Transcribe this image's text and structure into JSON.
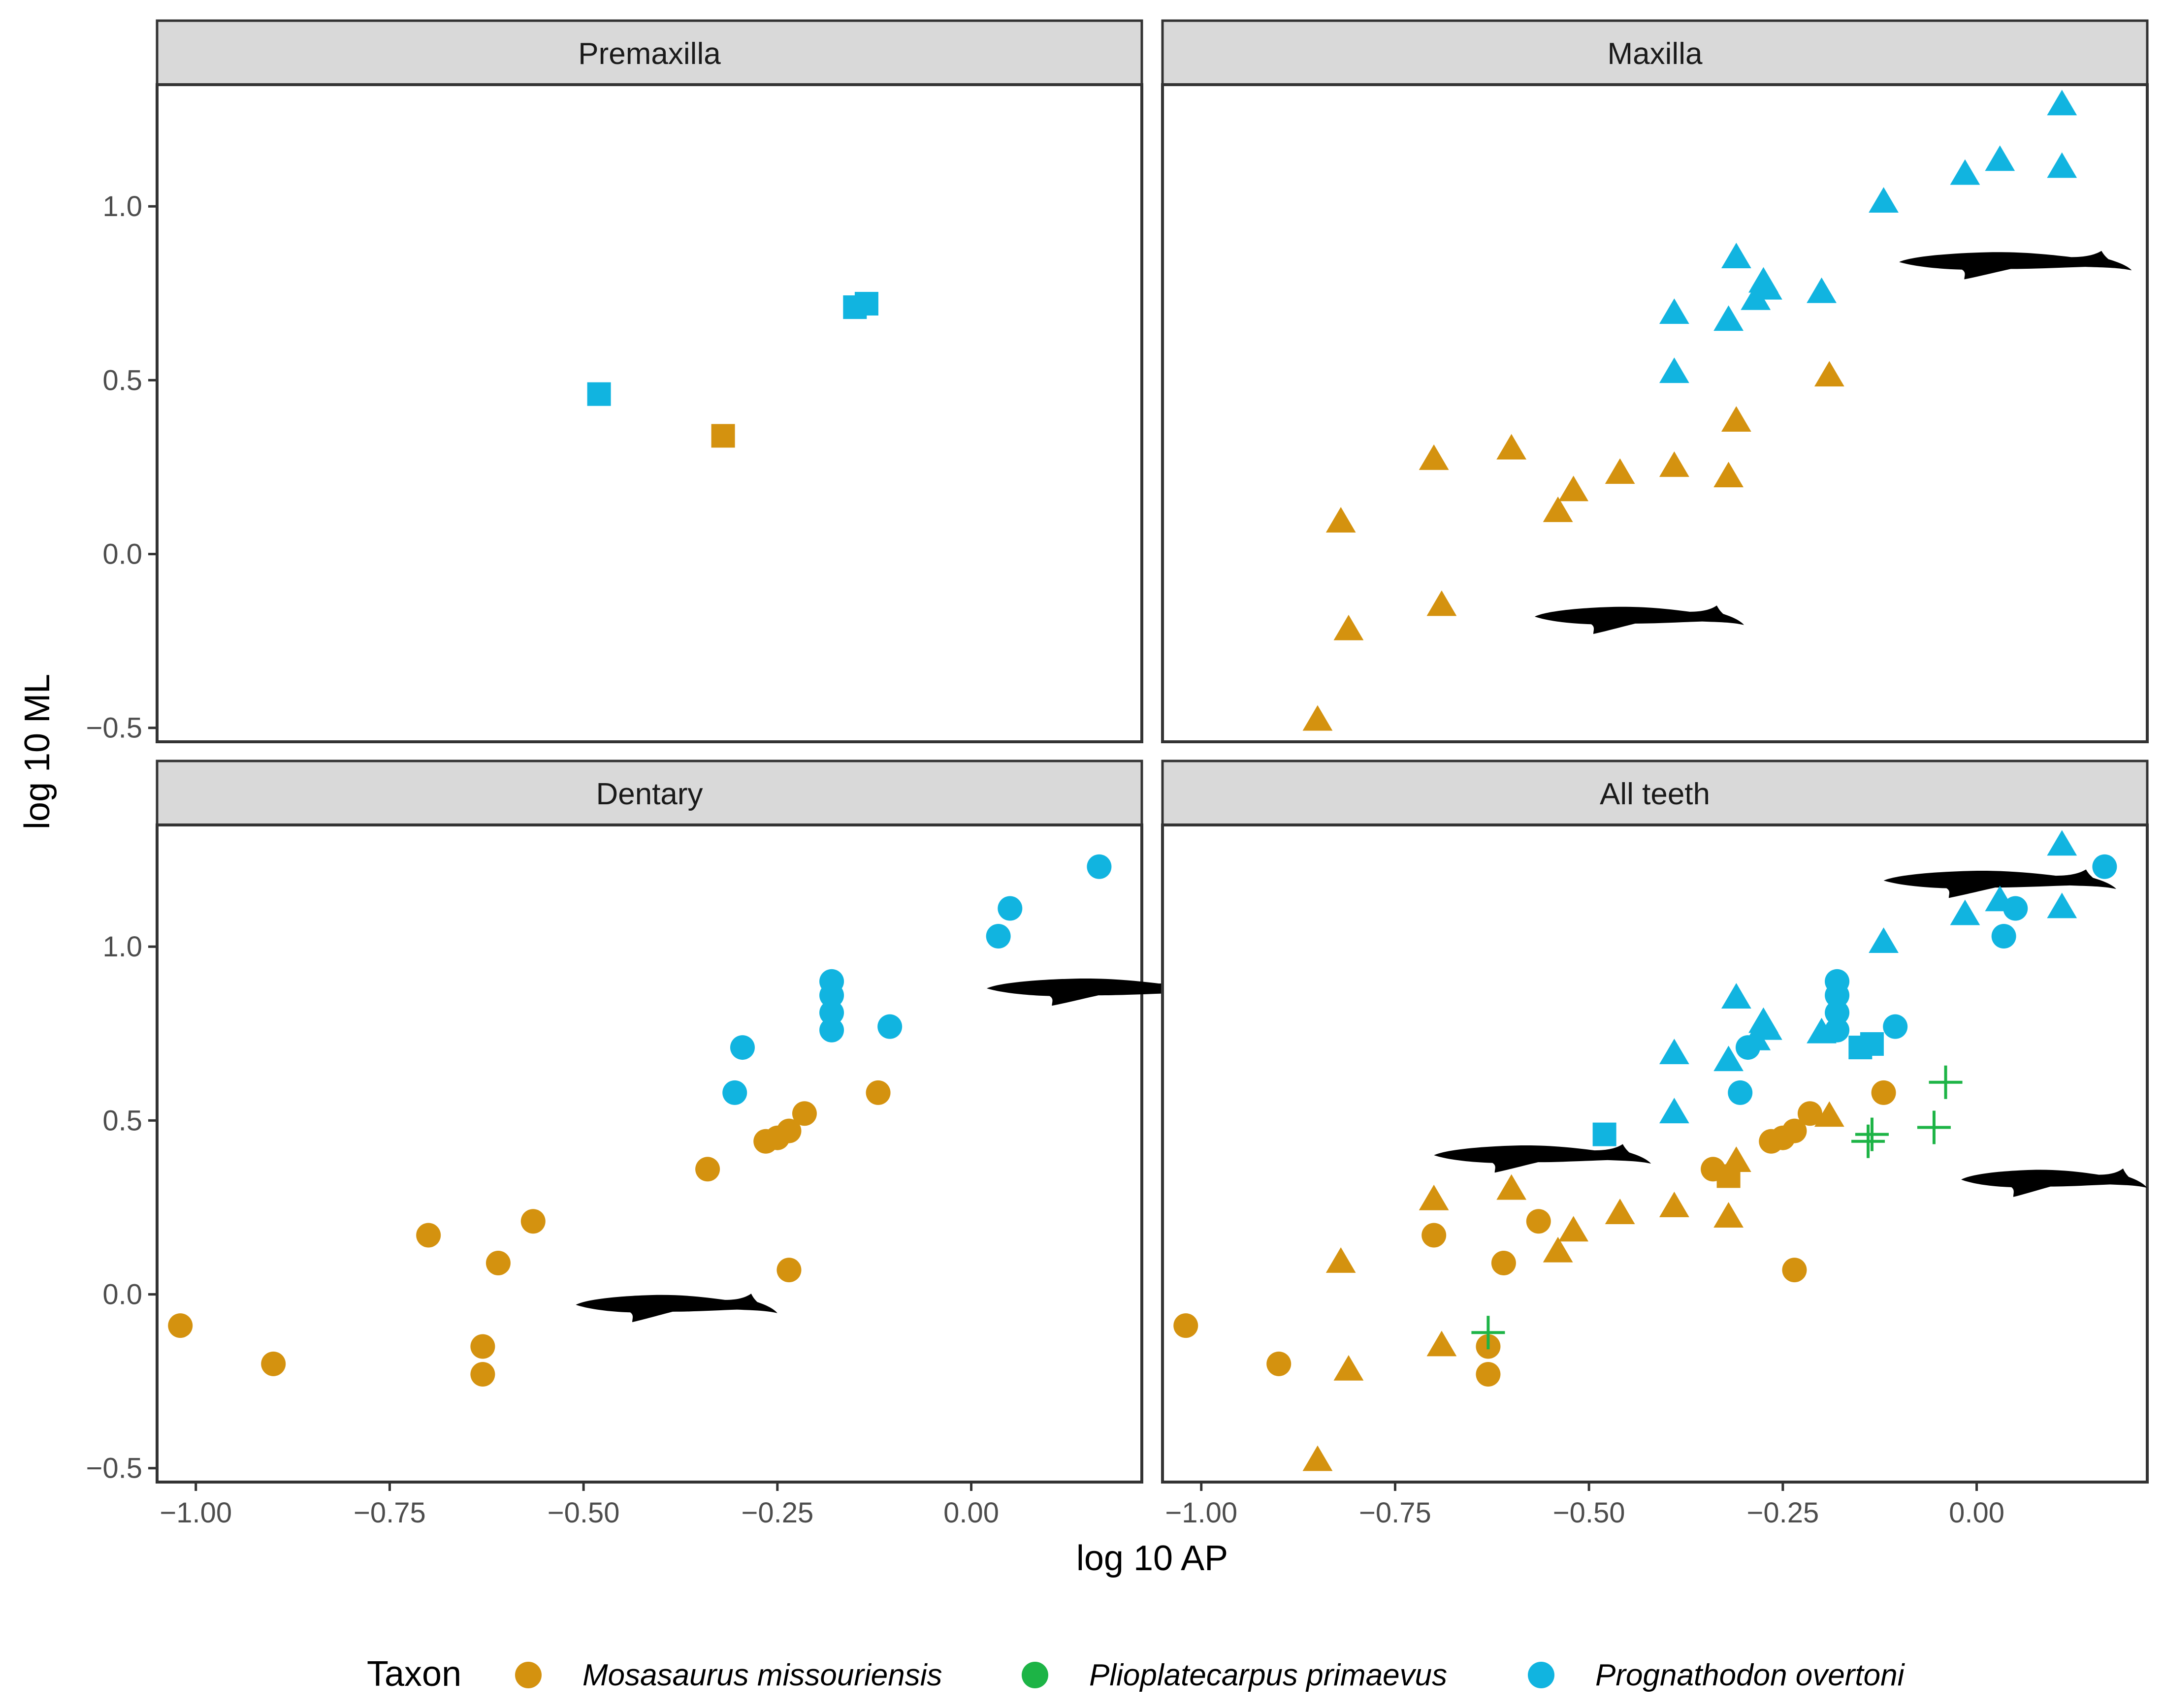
{
  "chart_data": {
    "type": "scatter",
    "xlabel": "log 10 AP",
    "ylabel": "log 10 ML",
    "xlim": [
      -1.05,
      0.22
    ],
    "ylim": [
      -0.54,
      1.35
    ],
    "xticks": [
      -1.0,
      -0.75,
      -0.5,
      -0.25,
      0.0
    ],
    "xtick_labels": [
      "−1.00",
      "−0.75",
      "−0.50",
      "−0.25",
      "0.00"
    ],
    "yticks": [
      -0.5,
      0.0,
      0.5,
      1.0
    ],
    "ytick_labels": [
      "−0.5",
      "0.0",
      "0.5",
      "1.0"
    ],
    "legend": {
      "title": "Taxon",
      "position": "bottom",
      "entries": [
        {
          "label": "Mosasaurus missouriensis",
          "color": "#D4920F"
        },
        {
          "label": "Plioplatecarpus primaevus",
          "color": "#1DB446"
        },
        {
          "label": "Prognathodon overtoni",
          "color": "#11B4E0"
        }
      ]
    },
    "taxa": {
      "mosasaurus": {
        "name": "Mosasaurus missouriensis",
        "color": "#D4920F"
      },
      "plioplatecarpus": {
        "name": "Plioplatecarpus primaevus",
        "color": "#1DB446"
      },
      "prognathodon": {
        "name": "Prognathodon overtoni",
        "color": "#11B4E0"
      }
    },
    "shapes": {
      "premaxilla": "square",
      "maxilla": "triangle",
      "dentary": "circle",
      "unknown": "cross"
    },
    "panels": [
      {
        "title": "Premaxilla",
        "points": [
          {
            "x": -0.48,
            "y": 0.46,
            "taxon": "prognathodon",
            "shape": "premaxilla"
          },
          {
            "x": -0.15,
            "y": 0.71,
            "taxon": "prognathodon",
            "shape": "premaxilla"
          },
          {
            "x": -0.135,
            "y": 0.72,
            "taxon": "prognathodon",
            "shape": "premaxilla"
          },
          {
            "x": -0.32,
            "y": 0.34,
            "taxon": "mosasaurus",
            "shape": "premaxilla"
          }
        ],
        "silhouettes": []
      },
      {
        "title": "Maxilla",
        "points": [
          {
            "x": -0.85,
            "y": -0.48,
            "taxon": "mosasaurus",
            "shape": "maxilla"
          },
          {
            "x": -0.82,
            "y": 0.09,
            "taxon": "mosasaurus",
            "shape": "maxilla"
          },
          {
            "x": -0.81,
            "y": -0.22,
            "taxon": "mosasaurus",
            "shape": "maxilla"
          },
          {
            "x": -0.7,
            "y": 0.27,
            "taxon": "mosasaurus",
            "shape": "maxilla"
          },
          {
            "x": -0.69,
            "y": -0.15,
            "taxon": "mosasaurus",
            "shape": "maxilla"
          },
          {
            "x": -0.6,
            "y": 0.3,
            "taxon": "mosasaurus",
            "shape": "maxilla"
          },
          {
            "x": -0.54,
            "y": 0.12,
            "taxon": "mosasaurus",
            "shape": "maxilla"
          },
          {
            "x": -0.52,
            "y": 0.18,
            "taxon": "mosasaurus",
            "shape": "maxilla"
          },
          {
            "x": -0.46,
            "y": 0.23,
            "taxon": "mosasaurus",
            "shape": "maxilla"
          },
          {
            "x": -0.39,
            "y": 0.25,
            "taxon": "mosasaurus",
            "shape": "maxilla"
          },
          {
            "x": -0.32,
            "y": 0.22,
            "taxon": "mosasaurus",
            "shape": "maxilla"
          },
          {
            "x": -0.31,
            "y": 0.38,
            "taxon": "mosasaurus",
            "shape": "maxilla"
          },
          {
            "x": -0.19,
            "y": 0.51,
            "taxon": "mosasaurus",
            "shape": "maxilla"
          },
          {
            "x": -0.39,
            "y": 0.52,
            "taxon": "prognathodon",
            "shape": "maxilla"
          },
          {
            "x": -0.39,
            "y": 0.69,
            "taxon": "prognathodon",
            "shape": "maxilla"
          },
          {
            "x": -0.32,
            "y": 0.67,
            "taxon": "prognathodon",
            "shape": "maxilla"
          },
          {
            "x": -0.31,
            "y": 0.85,
            "taxon": "prognathodon",
            "shape": "maxilla"
          },
          {
            "x": -0.285,
            "y": 0.73,
            "taxon": "prognathodon",
            "shape": "maxilla"
          },
          {
            "x": -0.275,
            "y": 0.78,
            "taxon": "prognathodon",
            "shape": "maxilla"
          },
          {
            "x": -0.27,
            "y": 0.76,
            "taxon": "prognathodon",
            "shape": "maxilla"
          },
          {
            "x": -0.2,
            "y": 0.75,
            "taxon": "prognathodon",
            "shape": "maxilla"
          },
          {
            "x": -0.12,
            "y": 1.01,
            "taxon": "prognathodon",
            "shape": "maxilla"
          },
          {
            "x": -0.015,
            "y": 1.09,
            "taxon": "prognathodon",
            "shape": "maxilla"
          },
          {
            "x": 0.03,
            "y": 1.13,
            "taxon": "prognathodon",
            "shape": "maxilla"
          },
          {
            "x": 0.11,
            "y": 1.11,
            "taxon": "prognathodon",
            "shape": "maxilla"
          },
          {
            "x": 0.11,
            "y": 1.29,
            "taxon": "prognathodon",
            "shape": "maxilla"
          }
        ],
        "silhouettes": [
          {
            "x": -0.57,
            "y": -0.18,
            "w": 0.27,
            "h": 0.1
          },
          {
            "x": -0.1,
            "y": 0.84,
            "w": 0.3,
            "h": 0.1
          }
        ]
      },
      {
        "title": "Dentary",
        "points": [
          {
            "x": -1.02,
            "y": -0.09,
            "taxon": "mosasaurus",
            "shape": "dentary"
          },
          {
            "x": -0.9,
            "y": -0.2,
            "taxon": "mosasaurus",
            "shape": "dentary"
          },
          {
            "x": -0.7,
            "y": 0.17,
            "taxon": "mosasaurus",
            "shape": "dentary"
          },
          {
            "x": -0.63,
            "y": -0.15,
            "taxon": "mosasaurus",
            "shape": "dentary"
          },
          {
            "x": -0.63,
            "y": -0.23,
            "taxon": "mosasaurus",
            "shape": "dentary"
          },
          {
            "x": -0.61,
            "y": 0.09,
            "taxon": "mosasaurus",
            "shape": "dentary"
          },
          {
            "x": -0.565,
            "y": 0.21,
            "taxon": "mosasaurus",
            "shape": "dentary"
          },
          {
            "x": -0.34,
            "y": 0.36,
            "taxon": "mosasaurus",
            "shape": "dentary"
          },
          {
            "x": -0.265,
            "y": 0.44,
            "taxon": "mosasaurus",
            "shape": "dentary"
          },
          {
            "x": -0.25,
            "y": 0.45,
            "taxon": "mosasaurus",
            "shape": "dentary"
          },
          {
            "x": -0.235,
            "y": 0.47,
            "taxon": "mosasaurus",
            "shape": "dentary"
          },
          {
            "x": -0.235,
            "y": 0.07,
            "taxon": "mosasaurus",
            "shape": "dentary"
          },
          {
            "x": -0.215,
            "y": 0.52,
            "taxon": "mosasaurus",
            "shape": "dentary"
          },
          {
            "x": -0.12,
            "y": 0.58,
            "taxon": "mosasaurus",
            "shape": "dentary"
          },
          {
            "x": -0.305,
            "y": 0.58,
            "taxon": "prognathodon",
            "shape": "dentary"
          },
          {
            "x": -0.295,
            "y": 0.71,
            "taxon": "prognathodon",
            "shape": "dentary"
          },
          {
            "x": -0.18,
            "y": 0.76,
            "taxon": "prognathodon",
            "shape": "dentary"
          },
          {
            "x": -0.18,
            "y": 0.81,
            "taxon": "prognathodon",
            "shape": "dentary"
          },
          {
            "x": -0.18,
            "y": 0.86,
            "taxon": "prognathodon",
            "shape": "dentary"
          },
          {
            "x": -0.18,
            "y": 0.9,
            "taxon": "prognathodon",
            "shape": "dentary"
          },
          {
            "x": -0.105,
            "y": 0.77,
            "taxon": "prognathodon",
            "shape": "dentary"
          },
          {
            "x": 0.035,
            "y": 1.03,
            "taxon": "prognathodon",
            "shape": "dentary"
          },
          {
            "x": 0.05,
            "y": 1.11,
            "taxon": "prognathodon",
            "shape": "dentary"
          },
          {
            "x": 0.165,
            "y": 1.23,
            "taxon": "prognathodon",
            "shape": "dentary"
          }
        ],
        "silhouettes": [
          {
            "x": -0.51,
            "y": -0.03,
            "w": 0.26,
            "h": 0.1
          },
          {
            "x": 0.02,
            "y": 0.88,
            "w": 0.3,
            "h": 0.1
          }
        ]
      },
      {
        "title": "All teeth",
        "points": [
          {
            "x": -1.02,
            "y": -0.09,
            "taxon": "mosasaurus",
            "shape": "dentary"
          },
          {
            "x": -0.9,
            "y": -0.2,
            "taxon": "mosasaurus",
            "shape": "dentary"
          },
          {
            "x": -0.7,
            "y": 0.17,
            "taxon": "mosasaurus",
            "shape": "dentary"
          },
          {
            "x": -0.63,
            "y": -0.15,
            "taxon": "mosasaurus",
            "shape": "dentary"
          },
          {
            "x": -0.63,
            "y": -0.23,
            "taxon": "mosasaurus",
            "shape": "dentary"
          },
          {
            "x": -0.61,
            "y": 0.09,
            "taxon": "mosasaurus",
            "shape": "dentary"
          },
          {
            "x": -0.565,
            "y": 0.21,
            "taxon": "mosasaurus",
            "shape": "dentary"
          },
          {
            "x": -0.34,
            "y": 0.36,
            "taxon": "mosasaurus",
            "shape": "dentary"
          },
          {
            "x": -0.265,
            "y": 0.44,
            "taxon": "mosasaurus",
            "shape": "dentary"
          },
          {
            "x": -0.25,
            "y": 0.45,
            "taxon": "mosasaurus",
            "shape": "dentary"
          },
          {
            "x": -0.235,
            "y": 0.47,
            "taxon": "mosasaurus",
            "shape": "dentary"
          },
          {
            "x": -0.235,
            "y": 0.07,
            "taxon": "mosasaurus",
            "shape": "dentary"
          },
          {
            "x": -0.215,
            "y": 0.52,
            "taxon": "mosasaurus",
            "shape": "dentary"
          },
          {
            "x": -0.12,
            "y": 0.58,
            "taxon": "mosasaurus",
            "shape": "dentary"
          },
          {
            "x": -0.305,
            "y": 0.58,
            "taxon": "prognathodon",
            "shape": "dentary"
          },
          {
            "x": -0.295,
            "y": 0.71,
            "taxon": "prognathodon",
            "shape": "dentary"
          },
          {
            "x": -0.18,
            "y": 0.76,
            "taxon": "prognathodon",
            "shape": "dentary"
          },
          {
            "x": -0.18,
            "y": 0.81,
            "taxon": "prognathodon",
            "shape": "dentary"
          },
          {
            "x": -0.18,
            "y": 0.86,
            "taxon": "prognathodon",
            "shape": "dentary"
          },
          {
            "x": -0.18,
            "y": 0.9,
            "taxon": "prognathodon",
            "shape": "dentary"
          },
          {
            "x": -0.105,
            "y": 0.77,
            "taxon": "prognathodon",
            "shape": "dentary"
          },
          {
            "x": 0.035,
            "y": 1.03,
            "taxon": "prognathodon",
            "shape": "dentary"
          },
          {
            "x": 0.05,
            "y": 1.11,
            "taxon": "prognathodon",
            "shape": "dentary"
          },
          {
            "x": 0.165,
            "y": 1.23,
            "taxon": "prognathodon",
            "shape": "dentary"
          },
          {
            "x": -0.85,
            "y": -0.48,
            "taxon": "mosasaurus",
            "shape": "maxilla"
          },
          {
            "x": -0.82,
            "y": 0.09,
            "taxon": "mosasaurus",
            "shape": "maxilla"
          },
          {
            "x": -0.81,
            "y": -0.22,
            "taxon": "mosasaurus",
            "shape": "maxilla"
          },
          {
            "x": -0.7,
            "y": 0.27,
            "taxon": "mosasaurus",
            "shape": "maxilla"
          },
          {
            "x": -0.69,
            "y": -0.15,
            "taxon": "mosasaurus",
            "shape": "maxilla"
          },
          {
            "x": -0.6,
            "y": 0.3,
            "taxon": "mosasaurus",
            "shape": "maxilla"
          },
          {
            "x": -0.54,
            "y": 0.12,
            "taxon": "mosasaurus",
            "shape": "maxilla"
          },
          {
            "x": -0.52,
            "y": 0.18,
            "taxon": "mosasaurus",
            "shape": "maxilla"
          },
          {
            "x": -0.46,
            "y": 0.23,
            "taxon": "mosasaurus",
            "shape": "maxilla"
          },
          {
            "x": -0.39,
            "y": 0.25,
            "taxon": "mosasaurus",
            "shape": "maxilla"
          },
          {
            "x": -0.32,
            "y": 0.22,
            "taxon": "mosasaurus",
            "shape": "maxilla"
          },
          {
            "x": -0.31,
            "y": 0.38,
            "taxon": "mosasaurus",
            "shape": "maxilla"
          },
          {
            "x": -0.19,
            "y": 0.51,
            "taxon": "mosasaurus",
            "shape": "maxilla"
          },
          {
            "x": -0.39,
            "y": 0.52,
            "taxon": "prognathodon",
            "shape": "maxilla"
          },
          {
            "x": -0.39,
            "y": 0.69,
            "taxon": "prognathodon",
            "shape": "maxilla"
          },
          {
            "x": -0.32,
            "y": 0.67,
            "taxon": "prognathodon",
            "shape": "maxilla"
          },
          {
            "x": -0.31,
            "y": 0.85,
            "taxon": "prognathodon",
            "shape": "maxilla"
          },
          {
            "x": -0.285,
            "y": 0.73,
            "taxon": "prognathodon",
            "shape": "maxilla"
          },
          {
            "x": -0.275,
            "y": 0.78,
            "taxon": "prognathodon",
            "shape": "maxilla"
          },
          {
            "x": -0.27,
            "y": 0.76,
            "taxon": "prognathodon",
            "shape": "maxilla"
          },
          {
            "x": -0.2,
            "y": 0.75,
            "taxon": "prognathodon",
            "shape": "maxilla"
          },
          {
            "x": -0.12,
            "y": 1.01,
            "taxon": "prognathodon",
            "shape": "maxilla"
          },
          {
            "x": -0.015,
            "y": 1.09,
            "taxon": "prognathodon",
            "shape": "maxilla"
          },
          {
            "x": 0.03,
            "y": 1.13,
            "taxon": "prognathodon",
            "shape": "maxilla"
          },
          {
            "x": 0.11,
            "y": 1.11,
            "taxon": "prognathodon",
            "shape": "maxilla"
          },
          {
            "x": 0.11,
            "y": 1.29,
            "taxon": "prognathodon",
            "shape": "maxilla"
          },
          {
            "x": -0.48,
            "y": 0.46,
            "taxon": "prognathodon",
            "shape": "premaxilla"
          },
          {
            "x": -0.15,
            "y": 0.71,
            "taxon": "prognathodon",
            "shape": "premaxilla"
          },
          {
            "x": -0.135,
            "y": 0.72,
            "taxon": "prognathodon",
            "shape": "premaxilla"
          },
          {
            "x": -0.32,
            "y": 0.34,
            "taxon": "mosasaurus",
            "shape": "premaxilla"
          },
          {
            "x": -0.63,
            "y": -0.11,
            "taxon": "plioplatecarpus",
            "shape": "unknown"
          },
          {
            "x": -0.14,
            "y": 0.44,
            "taxon": "plioplatecarpus",
            "shape": "unknown"
          },
          {
            "x": -0.135,
            "y": 0.46,
            "taxon": "plioplatecarpus",
            "shape": "unknown"
          },
          {
            "x": -0.055,
            "y": 0.48,
            "taxon": "plioplatecarpus",
            "shape": "unknown"
          },
          {
            "x": -0.04,
            "y": 0.61,
            "taxon": "plioplatecarpus",
            "shape": "unknown"
          }
        ],
        "silhouettes": [
          {
            "x": -0.12,
            "y": 1.19,
            "w": 0.3,
            "h": 0.1
          },
          {
            "x": -0.7,
            "y": 0.4,
            "w": 0.28,
            "h": 0.1
          },
          {
            "x": -0.02,
            "y": 0.33,
            "w": 0.24,
            "h": 0.1
          }
        ]
      }
    ]
  }
}
